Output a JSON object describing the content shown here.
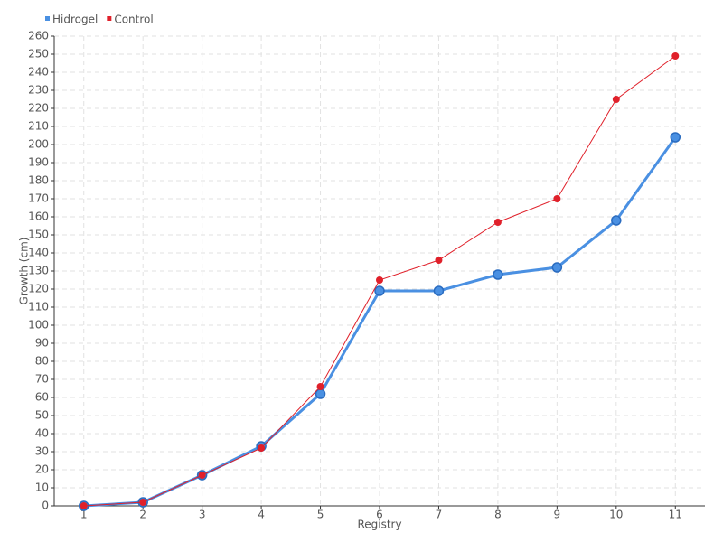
{
  "chart_data": {
    "type": "line",
    "x_label": "Registry",
    "y_label": "Growth (cm)",
    "categories": [
      "1",
      "2",
      "3",
      "4",
      "5",
      "6",
      "7",
      "8",
      "9",
      "10",
      "11"
    ],
    "series": [
      {
        "name": "Hidrogel",
        "color": "#4a90e2",
        "values": [
          0,
          2,
          17,
          33,
          62,
          119,
          119,
          128,
          132,
          158,
          204
        ]
      },
      {
        "name": "Control",
        "color": "#e0202a",
        "values": [
          0,
          2,
          17,
          32,
          66,
          125,
          136,
          157,
          170,
          225,
          249
        ]
      }
    ],
    "ylim": [
      0,
      260
    ],
    "yticks": [
      0,
      10,
      20,
      30,
      40,
      50,
      60,
      70,
      80,
      90,
      100,
      110,
      120,
      130,
      140,
      150,
      160,
      170,
      180,
      190,
      200,
      210,
      220,
      230,
      240,
      250,
      260
    ],
    "grid": true,
    "legend": "top-left"
  }
}
